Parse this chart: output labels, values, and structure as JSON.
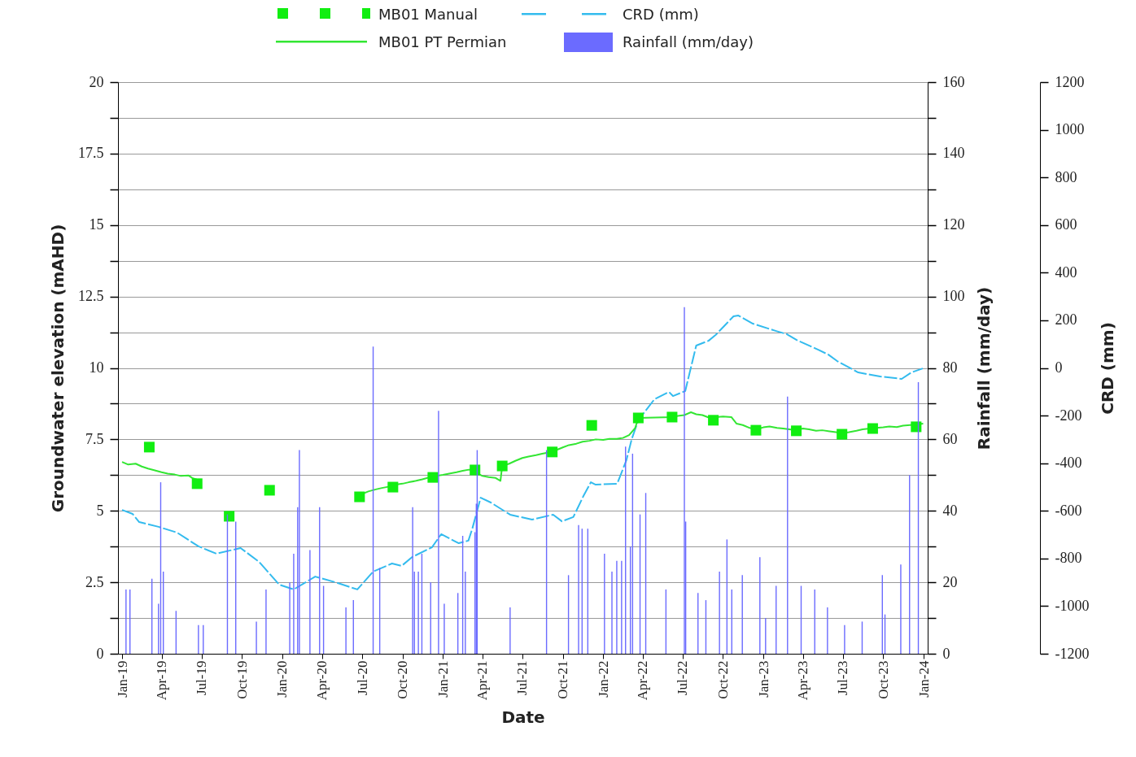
{
  "chart_data": {
    "type": "line",
    "xlabel": "Date",
    "ylabel": "Groundwater elevation (mAHD)",
    "y2label": "Rainfall (mm/day)",
    "y3label": "CRD (mm)",
    "grid": "y",
    "legend": "top",
    "xlim": [
      "2019-01-01",
      "2024-01-01"
    ],
    "xticks": [
      {
        "value": "2019-01-01",
        "label": "Jan-19"
      },
      {
        "value": "2019-04-01",
        "label": "Apr-19"
      },
      {
        "value": "2019-07-01",
        "label": "Jul-19"
      },
      {
        "value": "2019-10-01",
        "label": "Oct-19"
      },
      {
        "value": "2020-01-01",
        "label": "Jan-20"
      },
      {
        "value": "2020-04-01",
        "label": "Apr-20"
      },
      {
        "value": "2020-07-01",
        "label": "Jul-20"
      },
      {
        "value": "2020-10-01",
        "label": "Oct-20"
      },
      {
        "value": "2021-01-01",
        "label": "Jan-21"
      },
      {
        "value": "2021-04-01",
        "label": "Apr-21"
      },
      {
        "value": "2021-07-01",
        "label": "Jul-21"
      },
      {
        "value": "2021-10-01",
        "label": "Oct-21"
      },
      {
        "value": "2022-01-01",
        "label": "Jan-22"
      },
      {
        "value": "2022-04-01",
        "label": "Apr-22"
      },
      {
        "value": "2022-07-01",
        "label": "Jul-22"
      },
      {
        "value": "2022-10-01",
        "label": "Oct-22"
      },
      {
        "value": "2023-01-01",
        "label": "Jan-23"
      },
      {
        "value": "2023-04-01",
        "label": "Apr-23"
      },
      {
        "value": "2023-07-01",
        "label": "Jul-23"
      },
      {
        "value": "2023-10-01",
        "label": "Oct-23"
      },
      {
        "value": "2024-01-01",
        "label": "Jan-24"
      }
    ],
    "ylim": [
      0,
      20
    ],
    "yticks": [
      0,
      {
        "value": 1.25,
        "label": null
      },
      2.5,
      {
        "value": 3.75,
        "label": null
      },
      5,
      {
        "value": 6.25,
        "label": null
      },
      7.5,
      {
        "value": 8.75,
        "label": null
      },
      10,
      {
        "value": 11.25,
        "label": null
      },
      12.5,
      {
        "value": 13.75,
        "label": null
      },
      15,
      {
        "value": 16.25,
        "label": null
      },
      17.5,
      {
        "value": 18.75,
        "label": null
      },
      20
    ],
    "y2lim": [
      0,
      160
    ],
    "y2ticks": [
      0,
      {
        "value": 10,
        "label": null
      },
      20,
      {
        "value": 30,
        "label": null
      },
      40,
      {
        "value": 50,
        "label": null
      },
      60,
      {
        "value": 70,
        "label": null
      },
      80,
      {
        "value": 90,
        "label": null
      },
      100,
      {
        "value": 110,
        "label": null
      },
      120,
      {
        "value": 130,
        "label": null
      },
      140,
      {
        "value": 150,
        "label": null
      },
      160
    ],
    "y3lim": [
      -1200,
      1200
    ],
    "y3ticks": [
      -1200,
      -1000,
      -800,
      -600,
      -400,
      -200,
      0,
      200,
      400,
      600,
      800,
      1000,
      1200
    ],
    "series": [
      {
        "name": "MB01 Manual",
        "type": "scatter",
        "marker": "square",
        "color": "#11ee11",
        "x": [
          "2019-03-04",
          "2019-06-21",
          "2019-09-02",
          "2019-12-03",
          "2020-06-25",
          "2020-09-09",
          "2020-12-09",
          "2021-03-15",
          "2021-05-16",
          "2021-09-07",
          "2021-12-06",
          "2022-03-22",
          "2022-06-07",
          "2022-09-09",
          "2022-12-15",
          "2023-03-17",
          "2023-06-29",
          "2023-09-07",
          "2023-12-15"
        ],
        "values": [
          7.23,
          5.95,
          4.81,
          5.72,
          5.49,
          5.83,
          6.17,
          6.43,
          6.57,
          7.06,
          7.99,
          8.25,
          8.28,
          8.17,
          7.82,
          7.8,
          7.68,
          7.88,
          7.94
        ]
      },
      {
        "name": "CRD (mm)",
        "line_style": "dashed",
        "axis": "y3",
        "color": "#33bbee",
        "x": [
          "2019-01-01",
          "2019-01-25",
          "2019-02-09",
          "2019-03-25",
          "2019-05-06",
          "2019-06-24",
          "2019-08-04",
          "2019-09-28",
          "2019-11-09",
          "2019-12-25",
          "2020-01-27",
          "2020-03-16",
          "2020-05-01",
          "2020-06-20",
          "2020-07-26",
          "2020-09-07",
          "2020-09-29",
          "2020-10-23",
          "2020-12-07",
          "2020-12-28",
          "2021-02-06",
          "2021-02-28",
          "2021-03-09",
          "2021-03-28",
          "2021-04-20",
          "2021-06-03",
          "2021-07-23",
          "2021-09-09",
          "2021-09-29",
          "2021-10-25",
          "2021-11-17",
          "2021-12-04",
          "2021-12-15",
          "2022-02-02",
          "2022-02-23",
          "2022-03-07",
          "2022-03-22",
          "2022-04-28",
          "2022-05-31",
          "2022-06-09",
          "2022-07-07",
          "2022-07-19",
          "2022-08-01",
          "2022-08-29",
          "2022-09-14",
          "2022-10-25",
          "2022-11-05",
          "2022-12-08",
          "2023-01-30",
          "2023-02-23",
          "2023-03-17",
          "2023-05-05",
          "2023-05-29",
          "2023-06-18",
          "2023-08-05",
          "2023-09-24",
          "2023-11-12",
          "2023-12-04",
          "2023-12-30"
        ],
        "values": [
          -596,
          -613,
          -647,
          -667,
          -691,
          -749,
          -780,
          -756,
          -814,
          -910,
          -930,
          -876,
          -900,
          -930,
          -855,
          -821,
          -831,
          -794,
          -753,
          -698,
          -736,
          -725,
          -674,
          -545,
          -565,
          -616,
          -637,
          -616,
          -644,
          -626,
          -538,
          -480,
          -490,
          -486,
          -387,
          -299,
          -220,
          -131,
          -101,
          -118,
          -97,
          -5,
          94,
          114,
          138,
          217,
          220,
          186,
          155,
          142,
          118,
          77,
          56,
          29,
          -19,
          -36,
          -46,
          -19,
          -2
        ]
      },
      {
        "name": "MB01 PT Permian",
        "line_style": "solid",
        "color": "#33e633",
        "x": [
          "2019-01-01",
          "2019-01-15",
          "2019-02-01",
          "2019-02-15",
          "2019-03-01",
          "2019-03-15",
          "2019-04-01",
          "2019-04-15",
          "2019-05-01",
          "2019-05-15",
          "2019-06-01",
          "2019-06-10",
          "2019-06-20",
          "2020-01-01",
          "2020-06-25",
          "2020-07-15",
          "2020-08-01",
          "2020-08-15",
          "2020-09-01",
          "2020-09-15",
          "2020-10-01",
          "2020-10-15",
          "2020-11-01",
          "2020-11-15",
          "2020-12-01",
          "2020-12-15",
          "2021-01-01",
          "2021-01-15",
          "2021-02-01",
          "2021-02-15",
          "2021-03-01",
          "2021-03-15",
          "2021-03-22",
          "2021-04-01",
          "2021-04-15",
          "2021-05-01",
          "2021-05-12",
          "2021-05-16",
          "2021-06-01",
          "2021-06-15",
          "2021-07-01",
          "2021-07-15",
          "2021-08-01",
          "2021-08-15",
          "2021-09-01",
          "2021-09-15",
          "2021-10-01",
          "2021-10-15",
          "2021-11-01",
          "2021-11-15",
          "2021-12-01",
          "2021-12-15",
          "2022-01-01",
          "2022-01-15",
          "2022-02-01",
          "2022-02-15",
          "2022-03-01",
          "2022-03-15",
          "2022-03-22",
          "2022-06-07",
          "2022-06-20",
          "2022-07-05",
          "2022-07-20",
          "2022-08-01",
          "2022-08-15",
          "2022-09-01",
          "2022-09-15",
          "2022-10-01",
          "2022-10-20",
          "2022-11-01",
          "2022-11-15",
          "2022-12-01",
          "2022-12-15",
          "2023-01-01",
          "2023-01-15",
          "2023-02-01",
          "2023-02-15",
          "2023-03-01",
          "2023-03-15",
          "2023-04-01",
          "2023-04-15",
          "2023-05-01",
          "2023-05-15",
          "2023-06-01",
          "2023-06-15",
          "2023-07-01",
          "2023-07-15",
          "2023-08-01",
          "2023-08-15",
          "2023-09-01",
          "2023-09-15",
          "2023-10-01",
          "2023-10-15",
          "2023-11-01",
          "2023-11-15",
          "2023-12-01",
          "2023-12-15",
          "2023-12-31"
        ],
        "values": [
          6.71,
          6.62,
          6.65,
          6.55,
          6.48,
          6.42,
          6.35,
          6.3,
          6.27,
          6.22,
          6.24,
          6.15,
          6.1,
          null,
          5.55,
          5.68,
          5.75,
          5.8,
          5.85,
          5.92,
          5.95,
          6.0,
          6.05,
          6.1,
          6.17,
          6.22,
          6.26,
          6.3,
          6.35,
          6.4,
          6.44,
          6.46,
          6.3,
          6.22,
          6.18,
          6.15,
          6.05,
          6.57,
          6.65,
          6.75,
          6.85,
          6.9,
          6.95,
          7.0,
          7.05,
          7.12,
          7.22,
          7.3,
          7.35,
          7.42,
          7.45,
          7.5,
          7.48,
          7.52,
          7.52,
          7.55,
          7.65,
          7.9,
          8.25,
          8.28,
          8.32,
          8.35,
          8.45,
          8.38,
          8.35,
          8.25,
          8.28,
          8.3,
          8.28,
          8.05,
          8.0,
          7.9,
          7.85,
          7.92,
          7.95,
          7.9,
          7.88,
          7.85,
          7.82,
          7.88,
          7.85,
          7.8,
          7.82,
          7.78,
          7.75,
          7.72,
          7.75,
          7.8,
          7.85,
          7.88,
          7.9,
          7.92,
          7.95,
          7.93,
          7.98,
          8.0,
          8.02,
          8.05
        ]
      },
      {
        "name": "Rainfall (mm/day)",
        "type": "bar",
        "axis": "y2",
        "color": "#6b6bff",
        "x": [
          "2019-01-10",
          "2019-01-19",
          "2019-03-10",
          "2019-03-25",
          "2019-03-30",
          "2019-04-05",
          "2019-05-04",
          "2019-06-24",
          "2019-07-05",
          "2019-08-29",
          "2019-09-17",
          "2019-11-03",
          "2019-11-25",
          "2020-01-18",
          "2020-01-27",
          "2020-02-05",
          "2020-02-09",
          "2020-03-04",
          "2020-03-26",
          "2020-04-04",
          "2020-05-25",
          "2020-06-11",
          "2020-07-26",
          "2020-08-10",
          "2020-10-24",
          "2020-10-28",
          "2020-11-06",
          "2020-11-14",
          "2020-12-04",
          "2020-12-22",
          "2021-01-04",
          "2021-02-04",
          "2021-02-15",
          "2021-02-21",
          "2021-03-15",
          "2021-03-18",
          "2021-03-20",
          "2021-06-03",
          "2021-08-25",
          "2021-10-14",
          "2021-11-06",
          "2021-11-14",
          "2021-11-27",
          "2022-01-04",
          "2022-01-21",
          "2022-02-01",
          "2022-02-12",
          "2022-02-21",
          "2022-03-04",
          "2022-03-09",
          "2022-03-26",
          "2022-04-08",
          "2022-05-24",
          "2022-07-05",
          "2022-07-08",
          "2022-08-05",
          "2022-08-23",
          "2022-09-23",
          "2022-10-10",
          "2022-10-21",
          "2022-11-14",
          "2022-12-24",
          "2023-01-06",
          "2023-01-30",
          "2023-02-25",
          "2023-03-28",
          "2023-04-28",
          "2023-05-27",
          "2023-07-05",
          "2023-08-14",
          "2023-09-29",
          "2023-10-05",
          "2023-11-10",
          "2023-11-30",
          "2023-12-20"
        ],
        "values": [
          18,
          18,
          21,
          14,
          48,
          23,
          12,
          8,
          8,
          39,
          37,
          9,
          18,
          20,
          28,
          41,
          57,
          29,
          41,
          19,
          13,
          15,
          86,
          24,
          41,
          23,
          23,
          28,
          20,
          68,
          14,
          17,
          33,
          23,
          34,
          42,
          57,
          13,
          57,
          22,
          36,
          35,
          35,
          28,
          23,
          26,
          26,
          58,
          30,
          56,
          39,
          45,
          18,
          97,
          37,
          17,
          15,
          23,
          32,
          18,
          22,
          27,
          10,
          19,
          72,
          19,
          18,
          13,
          8,
          9,
          22,
          11,
          25,
          50,
          76
        ]
      }
    ]
  }
}
